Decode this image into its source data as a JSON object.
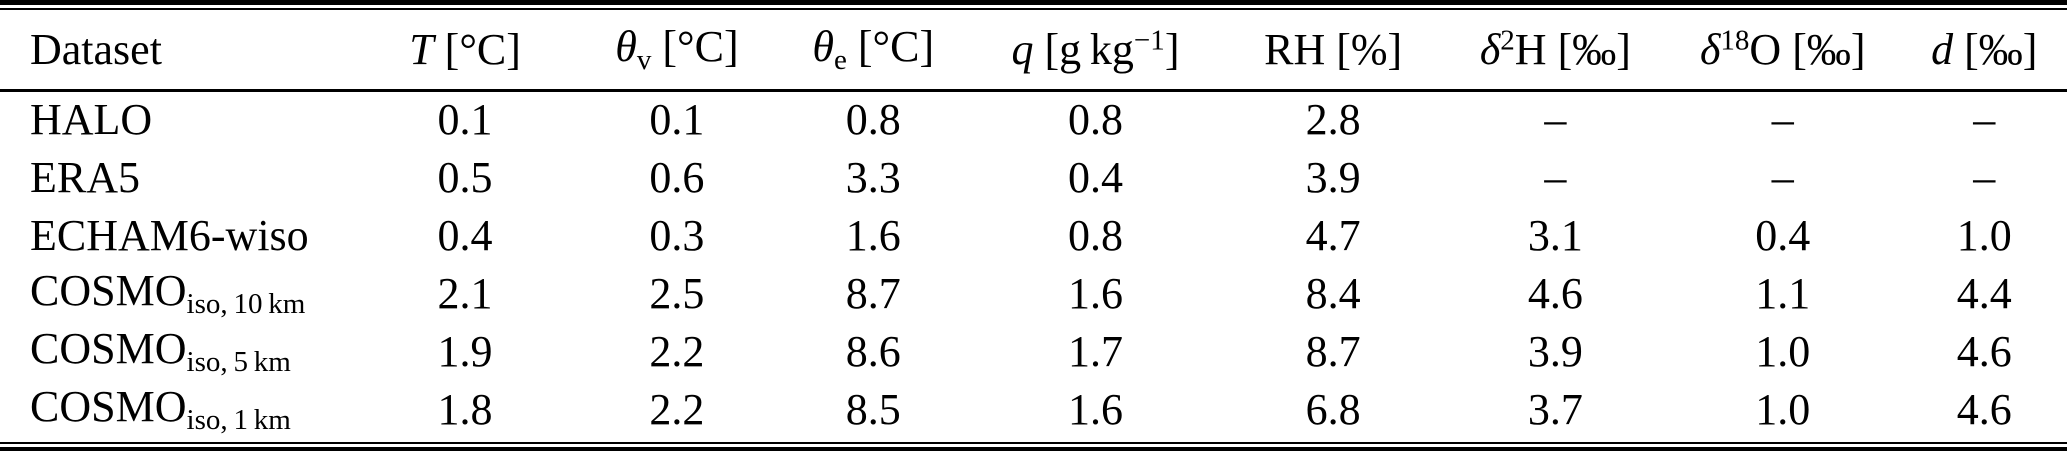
{
  "colors": {
    "text": "#000000",
    "rule": "#000000",
    "background": "#ffffff"
  },
  "table": {
    "header": [
      {
        "name": "dataset",
        "segments": [
          {
            "t": "Dataset"
          }
        ]
      },
      {
        "name": "temperature",
        "segments": [
          {
            "t": "T",
            "s": "i"
          },
          {
            "t": " [°C]"
          }
        ]
      },
      {
        "name": "theta-v",
        "segments": [
          {
            "t": "θ",
            "s": "i"
          },
          {
            "t": "v",
            "s": "sub"
          },
          {
            "t": " [°C]"
          }
        ]
      },
      {
        "name": "theta-e",
        "segments": [
          {
            "t": "θ",
            "s": "i"
          },
          {
            "t": "e",
            "s": "sub"
          },
          {
            "t": " [°C]"
          }
        ]
      },
      {
        "name": "specific-humidity",
        "segments": [
          {
            "t": "q",
            "s": "i"
          },
          {
            "t": " [g kg"
          },
          {
            "t": "−1",
            "s": "sup"
          },
          {
            "t": "]"
          }
        ]
      },
      {
        "name": "relative-humidity",
        "segments": [
          {
            "t": "RH [%]"
          }
        ]
      },
      {
        "name": "delta-2h",
        "segments": [
          {
            "t": "δ",
            "s": "i"
          },
          {
            "t": "2",
            "s": "sup"
          },
          {
            "t": "H [‰]"
          }
        ]
      },
      {
        "name": "delta-18o",
        "segments": [
          {
            "t": "δ",
            "s": "i"
          },
          {
            "t": "18",
            "s": "sup"
          },
          {
            "t": "O [‰]"
          }
        ]
      },
      {
        "name": "d-excess",
        "segments": [
          {
            "t": "d",
            "s": "i"
          },
          {
            "t": " [‰]"
          }
        ]
      }
    ],
    "rows": [
      {
        "dataset": [
          {
            "t": "HALO"
          }
        ],
        "values": [
          "0.1",
          "0.1",
          "0.8",
          "0.8",
          "2.8",
          "–",
          "–",
          "–"
        ]
      },
      {
        "dataset": [
          {
            "t": "ERA5"
          }
        ],
        "values": [
          "0.5",
          "0.6",
          "3.3",
          "0.4",
          "3.9",
          "–",
          "–",
          "–"
        ]
      },
      {
        "dataset": [
          {
            "t": "ECHAM6-wiso"
          }
        ],
        "values": [
          "0.4",
          "0.3",
          "1.6",
          "0.8",
          "4.7",
          "3.1",
          "0.4",
          "1.0"
        ]
      },
      {
        "dataset": [
          {
            "t": "COSMO"
          },
          {
            "t": "iso, 10 km",
            "s": "sub"
          }
        ],
        "values": [
          "2.1",
          "2.5",
          "8.7",
          "1.6",
          "8.4",
          "4.6",
          "1.1",
          "4.4"
        ]
      },
      {
        "dataset": [
          {
            "t": "COSMO"
          },
          {
            "t": "iso, 5 km",
            "s": "sub"
          }
        ],
        "values": [
          "1.9",
          "2.2",
          "8.6",
          "1.7",
          "8.7",
          "3.9",
          "1.0",
          "4.6"
        ]
      },
      {
        "dataset": [
          {
            "t": "COSMO"
          },
          {
            "t": "iso, 1 km",
            "s": "sub"
          }
        ],
        "values": [
          "1.8",
          "2.2",
          "8.5",
          "1.6",
          "6.8",
          "3.7",
          "1.0",
          "4.6"
        ]
      }
    ]
  }
}
